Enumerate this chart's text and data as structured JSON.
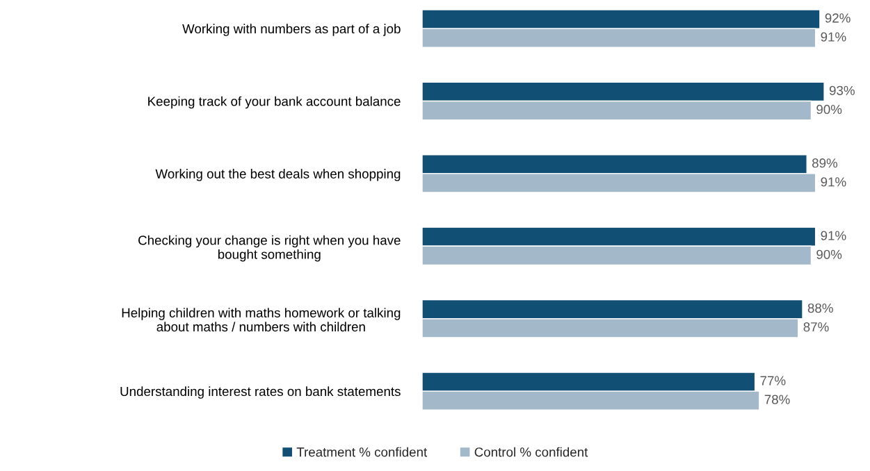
{
  "chart_data": {
    "type": "bar",
    "orientation": "horizontal",
    "categories": [
      "Working with numbers as part of a job",
      "Keeping track of your bank account balance",
      "Working out the best deals when shopping",
      "Checking your change is right when you have\nbought something",
      "Helping children with maths homework or talking\nabout maths / numbers with children",
      "Understanding interest rates on bank statements"
    ],
    "series": [
      {
        "name": "Treatment % confident",
        "color": "#124f74",
        "values": [
          92,
          93,
          89,
          91,
          88,
          77
        ],
        "value_labels": [
          "92%",
          "93%",
          "89%",
          "91%",
          "88%",
          "77%"
        ]
      },
      {
        "name": "Control % confident",
        "color": "#a3b9c9",
        "values": [
          91,
          90,
          91,
          90,
          87,
          78
        ],
        "value_labels": [
          "91%",
          "90%",
          "91%",
          "90%",
          "87%",
          "78%"
        ]
      }
    ],
    "tick_labels": "y",
    "grid": false,
    "legend": "bottom"
  }
}
